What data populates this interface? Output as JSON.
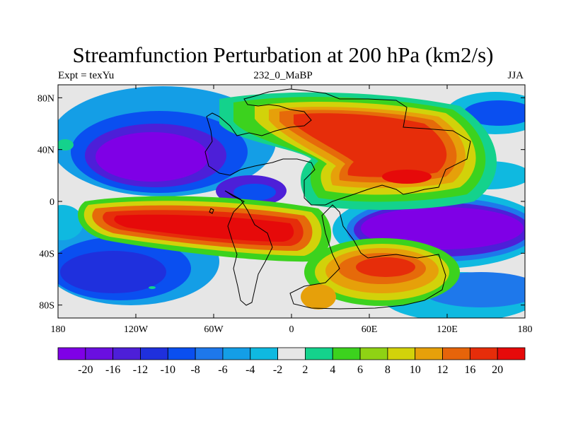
{
  "title": "Streamfunction Perturbation at 200 hPa (km2/s)",
  "subtitle_left": "Expt = texYu",
  "subtitle_center": "232_0_MaBP",
  "subtitle_right": "JJA",
  "map": {
    "projection": "cylindrical-equidistant",
    "lon_range": [
      -180,
      180
    ],
    "lat_range": [
      -90,
      90
    ],
    "missing_color": "#e6e6e6",
    "lat_ticks": [
      "80N",
      "40N",
      "0",
      "40S",
      "80S"
    ],
    "lon_ticks": [
      "180",
      "120W",
      "60W",
      "0",
      "60E",
      "120E",
      "180"
    ]
  },
  "colorbar": {
    "labels": [
      "-20",
      "-16",
      "-12",
      "-10",
      "-8",
      "-6",
      "-4",
      "-2",
      "2",
      "4",
      "6",
      "8",
      "10",
      "12",
      "16",
      "20"
    ],
    "colors": [
      "#7f00e6",
      "#6a0fe0",
      "#4d1fd8",
      "#1f30dd",
      "#0a4ff0",
      "#1e78eb",
      "#149ee6",
      "#0fb9e0",
      "#e6e6e6",
      "#14d28c",
      "#3cd21e",
      "#8fd214",
      "#d2d20a",
      "#e6a00a",
      "#e6640a",
      "#e62d0a",
      "#e60a0a"
    ]
  }
}
